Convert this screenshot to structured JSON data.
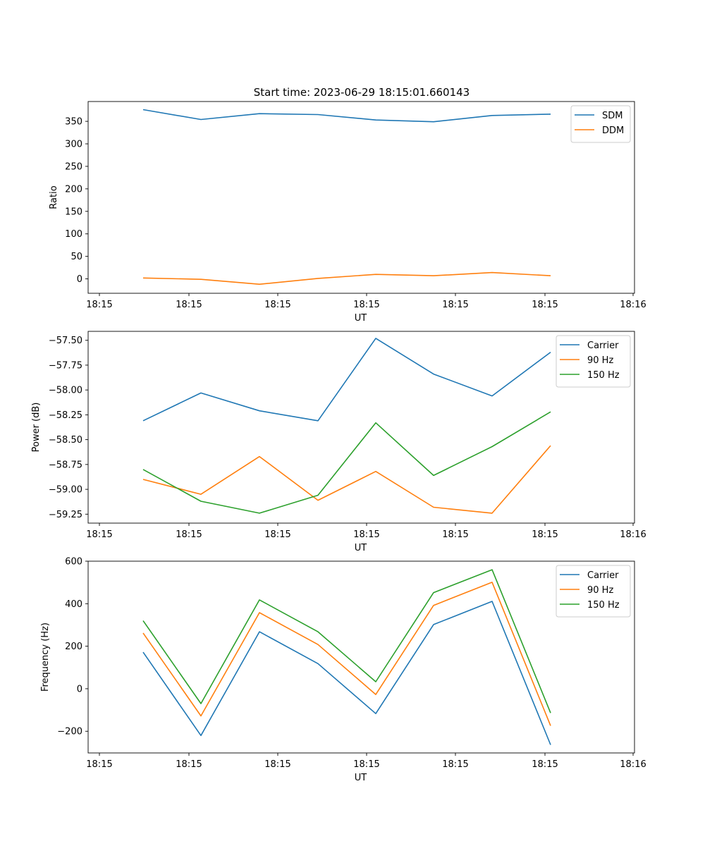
{
  "figure": {
    "title": "Start time: 2023-06-29 18:15:01.660143"
  },
  "chart_data": [
    {
      "type": "line",
      "ylabel": "Ratio",
      "xlabel": "UT",
      "x_tick_labels": [
        "18:15",
        "18:15",
        "18:15",
        "18:15",
        "18:15",
        "18:15",
        "18:16"
      ],
      "y_ticks": [
        0,
        50,
        100,
        150,
        200,
        250,
        300,
        350
      ],
      "y_tick_labels": [
        "0",
        "50",
        "100",
        "150",
        "200",
        "250",
        "300",
        "350"
      ],
      "ylim": [
        -32,
        394
      ],
      "grid": false,
      "legend": "top-right",
      "series": [
        {
          "name": "SDM",
          "color": "#1f77b4",
          "values": [
            376,
            354,
            367,
            365,
            353,
            349,
            363,
            366
          ]
        },
        {
          "name": "DDM",
          "color": "#ff7f0e",
          "values": [
            2,
            -1,
            -12,
            1,
            10,
            7,
            14,
            7
          ]
        }
      ]
    },
    {
      "type": "line",
      "ylabel": "Power (dB)",
      "xlabel": "UT",
      "x_tick_labels": [
        "18:15",
        "18:15",
        "18:15",
        "18:15",
        "18:15",
        "18:15",
        "18:16"
      ],
      "y_ticks": [
        -57.5,
        -57.75,
        -58.0,
        -58.25,
        -58.5,
        -58.75,
        -59.0,
        -59.25
      ],
      "y_tick_labels": [
        "−57.50",
        "−57.75",
        "−58.00",
        "−58.25",
        "−58.50",
        "−58.75",
        "−59.00",
        "−59.25"
      ],
      "ylim": [
        -59.34,
        -57.41
      ],
      "grid": false,
      "legend": "top-right",
      "series": [
        {
          "name": "Carrier",
          "color": "#1f77b4",
          "values": [
            -58.31,
            -58.03,
            -58.21,
            -58.31,
            -57.48,
            -57.84,
            -58.06,
            -57.62
          ]
        },
        {
          "name": "90 Hz",
          "color": "#ff7f0e",
          "values": [
            -58.9,
            -59.05,
            -58.67,
            -59.11,
            -58.82,
            -59.18,
            -59.24,
            -58.56
          ]
        },
        {
          "name": "150 Hz",
          "color": "#2ca02c",
          "values": [
            -58.8,
            -59.12,
            -59.24,
            -59.06,
            -58.33,
            -58.86,
            -58.57,
            -58.22
          ]
        }
      ]
    },
    {
      "type": "line",
      "ylabel": "Frequency (Hz)",
      "xlabel": "UT",
      "x_tick_labels": [
        "18:15",
        "18:15",
        "18:15",
        "18:15",
        "18:15",
        "18:15",
        "18:16"
      ],
      "y_ticks": [
        -200,
        0,
        200,
        400,
        600
      ],
      "y_tick_labels": [
        "−200",
        "0",
        "200",
        "400",
        "600"
      ],
      "ylim": [
        -302,
        600
      ],
      "grid": false,
      "legend": "top-right",
      "series": [
        {
          "name": "Carrier",
          "color": "#1f77b4",
          "values": [
            172,
            -220,
            268,
            118,
            -117,
            302,
            411,
            -264
          ]
        },
        {
          "name": "90 Hz",
          "color": "#ff7f0e",
          "values": [
            262,
            -128,
            358,
            208,
            -27,
            392,
            501,
            -174
          ]
        },
        {
          "name": "150 Hz",
          "color": "#2ca02c",
          "values": [
            320,
            -70,
            418,
            268,
            33,
            452,
            560,
            -114
          ]
        }
      ]
    }
  ]
}
